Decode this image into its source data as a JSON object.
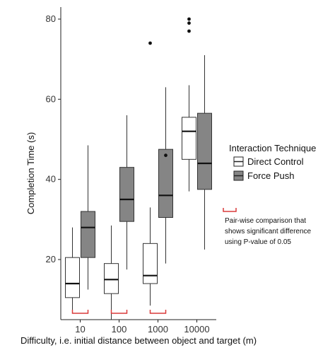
{
  "chart_data": {
    "type": "boxplot",
    "xlabel": "Difficulty, i.e. initial distance between object and target (m)",
    "ylabel": "Completion Time (s)",
    "categories": [
      "10",
      "100",
      "1000",
      "10000"
    ],
    "ylim": [
      5,
      83
    ],
    "y_ticks": [
      20,
      40,
      60,
      80
    ],
    "grid": false,
    "legend": {
      "title": "Interaction Technique",
      "placement": "right",
      "entries": [
        {
          "name": "Direct Control",
          "color": "#ffffff"
        },
        {
          "name": "Force Push",
          "color": "#858585"
        }
      ]
    },
    "annotation": {
      "marker_color": "#d93a3a",
      "text_lines": [
        "Pair-wise comparison that",
        "shows significant difference",
        "using P-value of 0.05"
      ],
      "marked_categories": [
        "10",
        "100",
        "1000"
      ]
    },
    "series": [
      {
        "name": "Direct Control",
        "boxes": [
          {
            "category": "10",
            "whisker_low": 7,
            "q1": 10.5,
            "median": 14,
            "q3": 20.5,
            "whisker_high": 28,
            "outliers": []
          },
          {
            "category": "100",
            "whisker_low": 5,
            "q1": 11.5,
            "median": 15,
            "q3": 19,
            "whisker_high": 28.5,
            "outliers": []
          },
          {
            "category": "1000",
            "whisker_low": 8.5,
            "q1": 14,
            "median": 16,
            "q3": 24,
            "whisker_high": 33,
            "outliers": [
              74
            ]
          },
          {
            "category": "10000",
            "whisker_low": 37,
            "q1": 45,
            "median": 52,
            "q3": 55.5,
            "whisker_high": 63.5,
            "outliers": [
              77,
              79,
              80
            ]
          }
        ]
      },
      {
        "name": "Force Push",
        "boxes": [
          {
            "category": "10",
            "whisker_low": 12.5,
            "q1": 20.5,
            "median": 28,
            "q3": 32,
            "whisker_high": 48.5,
            "outliers": []
          },
          {
            "category": "100",
            "whisker_low": 17.5,
            "q1": 29.5,
            "median": 35,
            "q3": 43,
            "whisker_high": 56,
            "outliers": []
          },
          {
            "category": "1000",
            "whisker_low": 19,
            "q1": 30.5,
            "median": 36,
            "q3": 47.5,
            "whisker_high": 63,
            "outliers": [
              46
            ]
          },
          {
            "category": "10000",
            "whisker_low": 22.5,
            "q1": 37.5,
            "median": 44,
            "q3": 56.5,
            "whisker_high": 71,
            "outliers": []
          }
        ]
      }
    ]
  }
}
